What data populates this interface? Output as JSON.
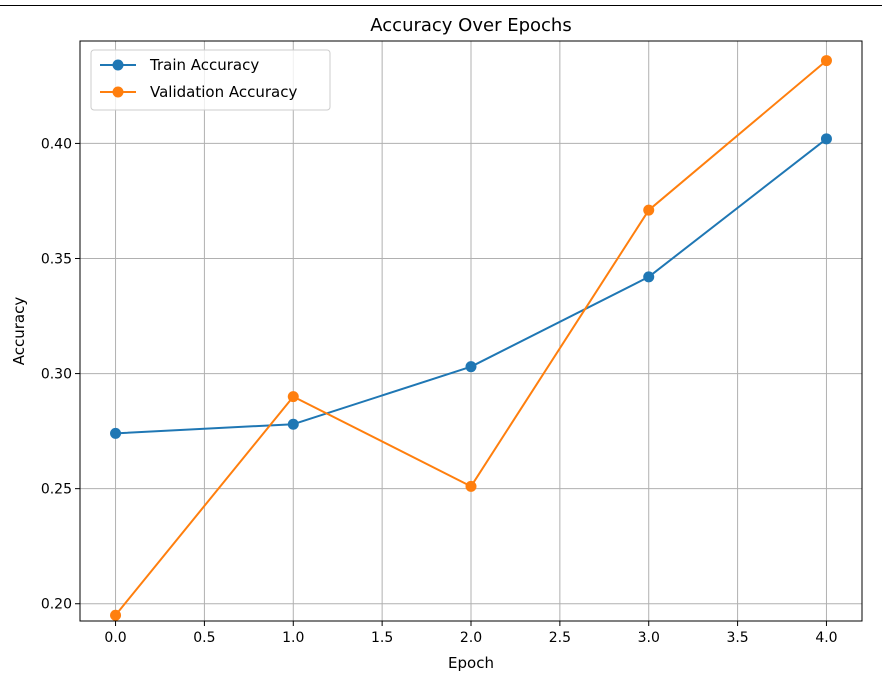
{
  "chart_data": {
    "type": "line",
    "title": "Accuracy Over Epochs",
    "xlabel": "Epoch",
    "ylabel": "Accuracy",
    "x": [
      0,
      1,
      2,
      3,
      4
    ],
    "xlim": [
      -0.2,
      4.2
    ],
    "ylim": [
      0.1925,
      0.4445
    ],
    "xticks": [
      0.0,
      0.5,
      1.0,
      1.5,
      2.0,
      2.5,
      3.0,
      3.5,
      4.0
    ],
    "xtick_labels": [
      "0.0",
      "0.5",
      "1.0",
      "1.5",
      "2.0",
      "2.5",
      "3.0",
      "3.5",
      "4.0"
    ],
    "yticks": [
      0.2,
      0.25,
      0.3,
      0.35,
      0.4
    ],
    "ytick_labels": [
      "0.20",
      "0.25",
      "0.30",
      "0.35",
      "0.40"
    ],
    "grid": true,
    "legend_position": "upper-left",
    "series": [
      {
        "name": "Train Accuracy",
        "color": "#1f77b4",
        "marker": "circle",
        "values": [
          0.274,
          0.278,
          0.303,
          0.342,
          0.402
        ]
      },
      {
        "name": "Validation Accuracy",
        "color": "#ff7f0e",
        "marker": "circle",
        "values": [
          0.195,
          0.29,
          0.251,
          0.371,
          0.436
        ]
      }
    ]
  }
}
